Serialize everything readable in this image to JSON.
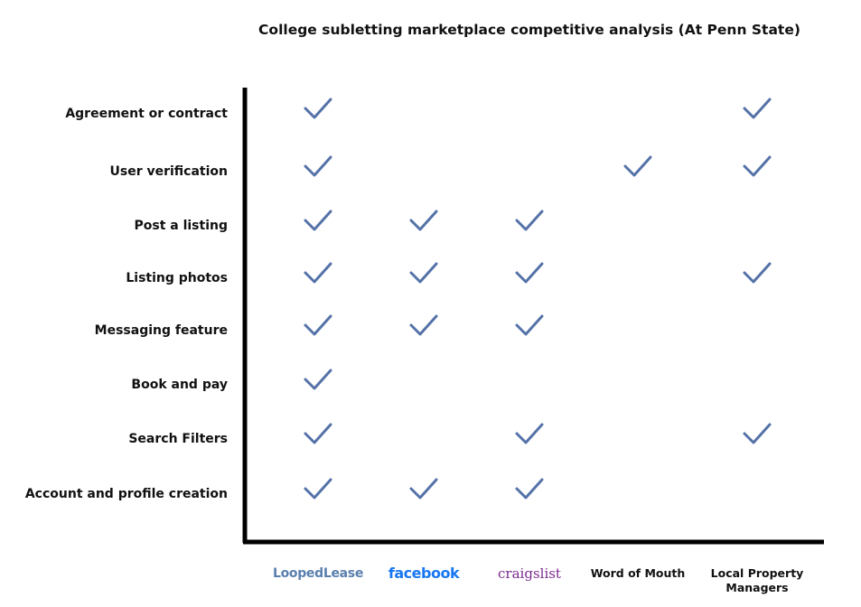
{
  "title": "College subletting marketplace competitive analysis (At Penn State)",
  "features": [
    "Agreement or contract",
    "User verification",
    "Post a listing",
    "Listing photos",
    "Messaging feature",
    "Book and pay",
    "Search Filters",
    "Account and profile creation"
  ],
  "competitors": [
    "LoopedLease",
    "facebook",
    "craigslist",
    "Word of Mouth",
    "Local Property Managers"
  ],
  "checks": [
    [
      true,
      false,
      false,
      false,
      true
    ],
    [
      true,
      false,
      false,
      true,
      true
    ],
    [
      true,
      true,
      true,
      false,
      false
    ],
    [
      true,
      true,
      true,
      false,
      true
    ],
    [
      true,
      true,
      true,
      false,
      false
    ],
    [
      true,
      false,
      false,
      false,
      false
    ],
    [
      true,
      false,
      true,
      false,
      true
    ],
    [
      true,
      true,
      true,
      false,
      false
    ]
  ]
}
